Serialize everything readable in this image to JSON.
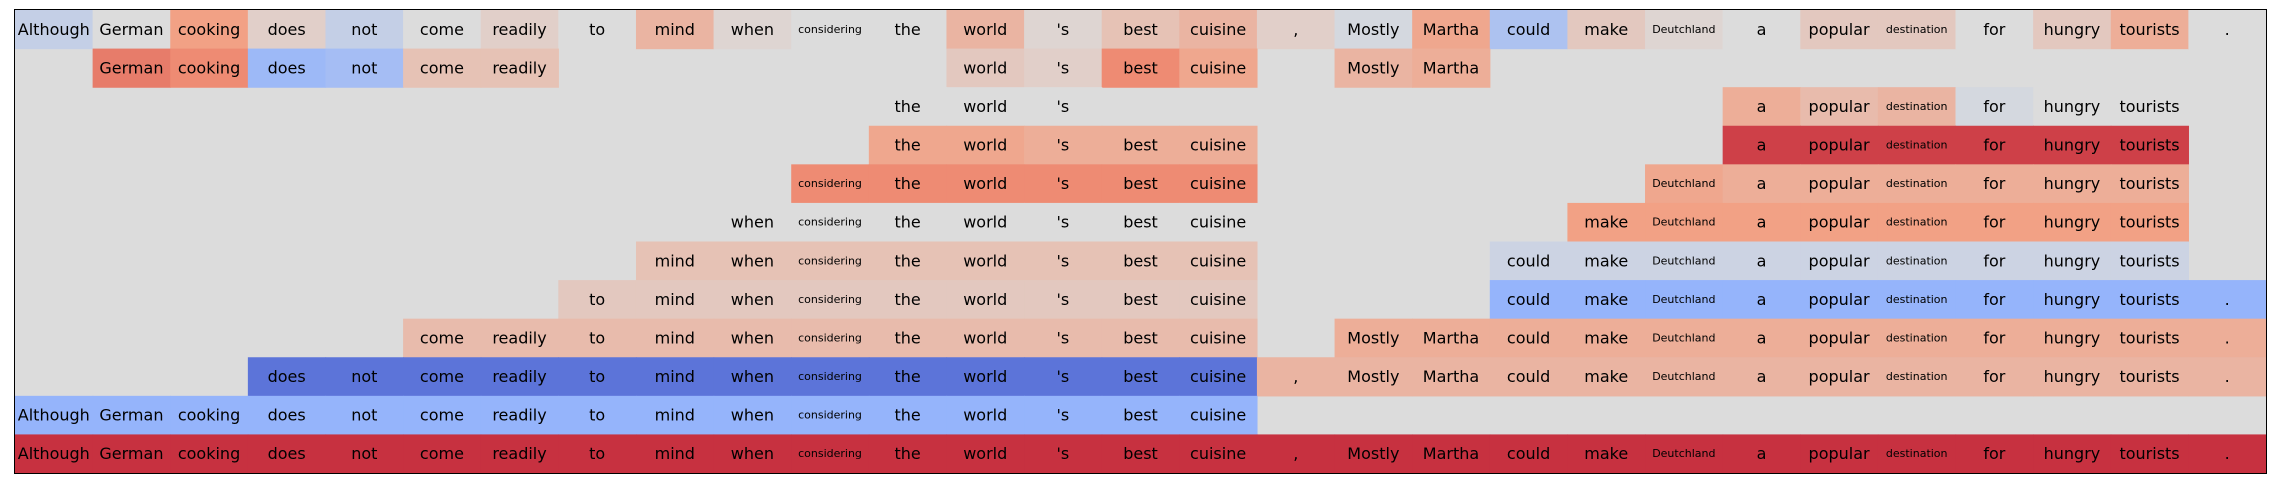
{
  "chart_data": {
    "type": "heatmap",
    "tokens": [
      "Although",
      "German",
      "cooking",
      "does",
      "not",
      "come",
      "readily",
      "to",
      "mind",
      "when",
      "considering",
      "the",
      "world",
      "'s",
      "best",
      "cuisine",
      ",",
      "Mostly",
      "Martha",
      "could",
      "make",
      "Deutchland",
      "a",
      "popular",
      "destination",
      "for",
      "hungry",
      "tourists",
      "."
    ],
    "colors": {
      "background": "#dcdcdc",
      "scale": "coolwarm",
      "blue_strong": "#5a78e4",
      "blue_mid": "#a5c0fb",
      "blue_light": "#c8d7f2",
      "red_strong": "#d44a3a",
      "red_mid": "#ee8a6d",
      "red_light": "#f5c4ac"
    },
    "rows": [
      {
        "start": 0,
        "end": 28,
        "hidden": [],
        "values": [
          -0.15,
          0.0,
          0.45,
          0.1,
          -0.15,
          0.0,
          0.1,
          0.0,
          0.3,
          0.05,
          0.0,
          0.0,
          0.3,
          0.05,
          0.2,
          0.3,
          0.1,
          -0.05,
          0.4,
          -0.3,
          0.15,
          0.05,
          0.0,
          0.15,
          0.15,
          0.0,
          0.15,
          0.35,
          0.0
        ]
      },
      {
        "start": 1,
        "end": 18,
        "hidden": [
          7,
          8,
          9,
          10,
          11,
          16
        ],
        "values": [
          0.0,
          0.6,
          0.55,
          -0.4,
          -0.35,
          0.2,
          0.2,
          0.0,
          0.0,
          0.0,
          0.0,
          0.0,
          0.15,
          0.1,
          0.55,
          0.4,
          0.0,
          0.3,
          0.35
        ]
      },
      {
        "start": 11,
        "end": 27,
        "hidden": [
          14,
          15,
          16,
          17,
          18,
          19,
          20,
          21
        ],
        "values": [
          0,
          0,
          0,
          0,
          0,
          0,
          0,
          0,
          0,
          0,
          0,
          0.0,
          0.0,
          0.0,
          0,
          0,
          0,
          0,
          0,
          0,
          0,
          0,
          0.35,
          0.25,
          0.3,
          -0.05,
          0.0,
          0.0
        ]
      },
      {
        "start": 11,
        "end": 27,
        "hidden": [
          16,
          17,
          18,
          19,
          20,
          21
        ],
        "values": [
          0,
          0,
          0,
          0,
          0,
          0,
          0,
          0,
          0,
          0,
          0,
          0.4,
          0.4,
          0.35,
          0.35,
          0.35,
          0,
          0,
          0,
          0,
          0,
          0,
          0.8,
          0.8,
          0.8,
          0.8,
          0.8,
          0.8
        ]
      },
      {
        "start": 10,
        "end": 27,
        "hidden": [
          16,
          17,
          18,
          19,
          20
        ],
        "values": [
          0,
          0,
          0,
          0,
          0,
          0,
          0,
          0,
          0,
          0,
          0.55,
          0.55,
          0.55,
          0.55,
          0.55,
          0.55,
          0,
          0,
          0,
          0,
          0,
          0.4,
          0.35,
          0.35,
          0.35,
          0.35,
          0.35,
          0.35
        ]
      },
      {
        "start": 9,
        "end": 27,
        "hidden": [
          16,
          17,
          18,
          19
        ],
        "values": [
          0,
          0,
          0,
          0,
          0,
          0,
          0,
          0,
          0,
          0.0,
          0.0,
          0.0,
          0.0,
          0.0,
          0.0,
          0.0,
          0,
          0,
          0,
          0,
          0.45,
          0.45,
          0.45,
          0.45,
          0.45,
          0.45,
          0.45,
          0.45
        ]
      },
      {
        "start": 8,
        "end": 27,
        "hidden": [
          16,
          17,
          18
        ],
        "values": [
          0,
          0,
          0,
          0,
          0,
          0,
          0,
          0,
          0.2,
          0.2,
          0.2,
          0.2,
          0.2,
          0.2,
          0.2,
          0.2,
          0,
          0,
          0,
          -0.1,
          -0.1,
          -0.1,
          -0.1,
          -0.1,
          -0.1,
          -0.1,
          -0.1,
          -0.1
        ]
      },
      {
        "start": 7,
        "end": 28,
        "hidden": [
          16,
          17,
          18
        ],
        "values": [
          0,
          0,
          0,
          0,
          0,
          0,
          0,
          0.15,
          0.15,
          0.15,
          0.15,
          0.15,
          0.15,
          0.15,
          0.15,
          0.15,
          0,
          0,
          0,
          -0.45,
          -0.45,
          -0.45,
          -0.45,
          -0.45,
          -0.45,
          -0.45,
          -0.45,
          -0.45,
          -0.45
        ]
      },
      {
        "start": 5,
        "end": 28,
        "hidden": [
          16
        ],
        "values": [
          0,
          0,
          0,
          0,
          0,
          0.25,
          0.25,
          0.25,
          0.25,
          0.25,
          0.25,
          0.25,
          0.25,
          0.25,
          0.25,
          0.25,
          0,
          0.35,
          0.35,
          0.35,
          0.35,
          0.35,
          0.35,
          0.35,
          0.35,
          0.35,
          0.35,
          0.35,
          0.35
        ]
      },
      {
        "start": 3,
        "end": 28,
        "hidden": [],
        "values": [
          0,
          0,
          0,
          -0.8,
          -0.8,
          -0.8,
          -0.8,
          -0.8,
          -0.8,
          -0.8,
          -0.8,
          -0.8,
          -0.8,
          -0.8,
          -0.8,
          -0.8,
          0.3,
          0.3,
          0.3,
          0.3,
          0.3,
          0.3,
          0.3,
          0.3,
          0.3,
          0.3,
          0.3,
          0.3,
          0.3
        ]
      },
      {
        "start": 0,
        "end": 15,
        "hidden": [],
        "values": [
          -0.45,
          -0.45,
          -0.45,
          -0.45,
          -0.45,
          -0.45,
          -0.45,
          -0.45,
          -0.45,
          -0.45,
          -0.45,
          -0.45,
          -0.45,
          -0.45,
          -0.45,
          -0.45
        ]
      },
      {
        "start": 0,
        "end": 28,
        "hidden": [],
        "values": [
          0.85,
          0.85,
          0.85,
          0.85,
          0.85,
          0.85,
          0.85,
          0.85,
          0.85,
          0.85,
          0.85,
          0.85,
          0.85,
          0.85,
          0.85,
          0.85,
          0.85,
          0.85,
          0.85,
          0.85,
          0.85,
          0.85,
          0.85,
          0.85,
          0.85,
          0.85,
          0.85,
          0.85,
          0.85
        ]
      }
    ],
    "title": "",
    "xlabel": "",
    "ylabel": "",
    "grid": false,
    "legend": "none"
  }
}
